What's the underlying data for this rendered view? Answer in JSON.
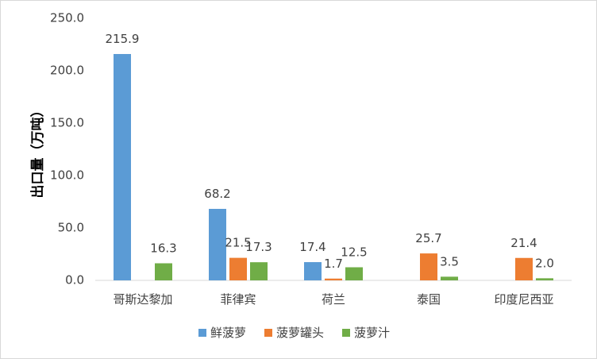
{
  "chart_data": {
    "type": "bar",
    "title": "",
    "xlabel": "",
    "ylabel": "出口量（万吨）",
    "ylim": [
      0,
      250
    ],
    "yticks": [
      "0.0",
      "50.0",
      "100.0",
      "150.0",
      "200.0",
      "250.0"
    ],
    "grid": false,
    "legend_position": "bottom",
    "categories": [
      "哥斯达黎加",
      "菲律宾",
      "荷兰",
      "泰国",
      "印度尼西亚"
    ],
    "series": [
      {
        "name": "鲜菠萝",
        "color": "#5b9bd5",
        "values": [
          215.9,
          68.2,
          17.4,
          null,
          null
        ],
        "labels": [
          "215.9",
          "68.2",
          "17.4",
          "",
          ""
        ]
      },
      {
        "name": "菠萝罐头",
        "color": "#ed7d31",
        "values": [
          null,
          21.5,
          1.7,
          25.7,
          21.4
        ],
        "labels": [
          "",
          "21.5",
          "1.7",
          "25.7",
          "21.4"
        ]
      },
      {
        "name": "菠萝汁",
        "color": "#70ad47",
        "values": [
          16.3,
          17.3,
          12.5,
          3.5,
          2.0
        ],
        "labels": [
          "16.3",
          "17.3",
          "12.5",
          "3.5",
          "2.0"
        ]
      }
    ]
  }
}
